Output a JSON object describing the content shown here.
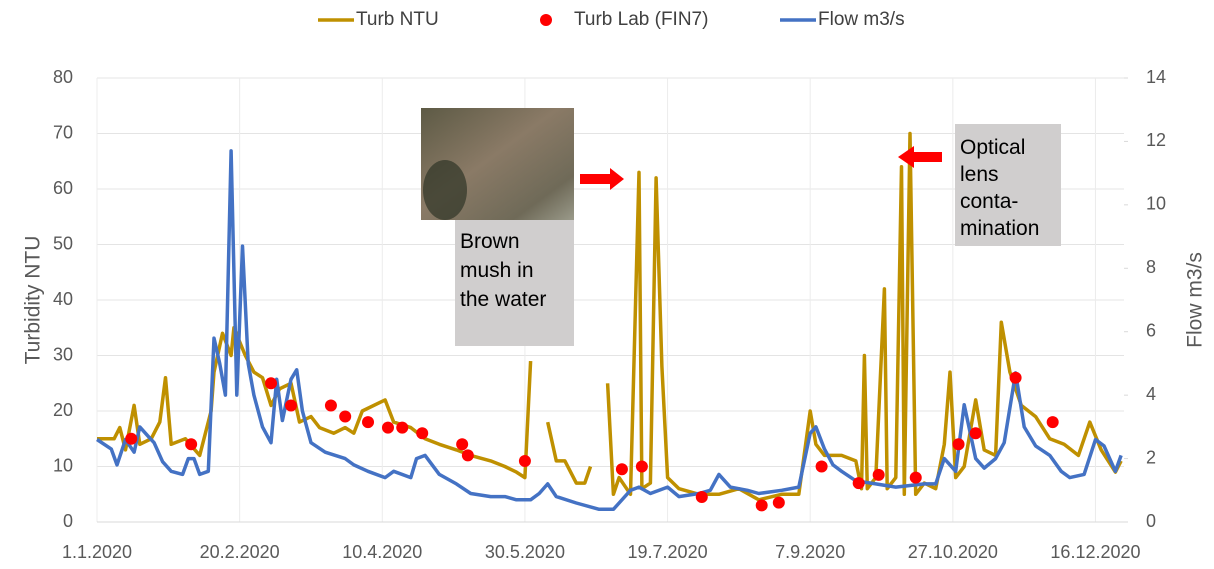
{
  "chart_data": {
    "type": "line",
    "legend": "top",
    "grid": true,
    "y_label": "Turbidity NTU",
    "y2_label": "Flow m3/s",
    "xlim": [
      "2020-01-01",
      "2020-12-26"
    ],
    "xticks": [
      {
        "value": "2020-01-01",
        "label": "1.1.2020"
      },
      {
        "value": "2020-02-20",
        "label": "20.2.2020"
      },
      {
        "value": "2020-04-10",
        "label": "10.4.2020"
      },
      {
        "value": "2020-05-30",
        "label": "30.5.2020"
      },
      {
        "value": "2020-07-19",
        "label": "19.7.2020"
      },
      {
        "value": "2020-09-07",
        "label": "7.9.2020"
      },
      {
        "value": "2020-10-27",
        "label": "27.10.2020"
      },
      {
        "value": "2020-12-16",
        "label": "16.12.2020"
      }
    ],
    "ylim": [
      0,
      80
    ],
    "yticks": [
      0,
      10,
      20,
      30,
      40,
      50,
      60,
      70,
      80
    ],
    "y2lim": [
      0,
      14
    ],
    "y2ticks": [
      0,
      2,
      4,
      6,
      8,
      10,
      12,
      14
    ],
    "series": [
      {
        "name": "Turb NTU",
        "type": "line",
        "color": "#bf9000",
        "x": [
          "2020-01-01",
          "2020-01-07",
          "2020-01-09",
          "2020-01-11",
          "2020-01-14",
          "2020-01-16",
          "2020-01-20",
          "2020-01-23",
          "2020-01-25",
          "2020-01-27",
          "2020-02-01",
          "2020-02-06",
          "2020-02-10",
          "2020-02-11",
          "2020-02-14",
          "2020-02-17",
          "2020-02-18",
          "2020-02-22",
          "2020-02-25",
          "2020-02-28",
          "2020-03-02",
          "2020-03-05",
          "2020-03-09",
          "2020-03-12",
          "2020-03-16",
          "2020-03-19",
          "2020-03-24",
          "2020-03-28",
          "2020-03-31",
          "2020-04-03",
          "2020-04-11",
          "2020-04-14",
          "2020-04-20",
          "2020-04-25",
          "2020-04-30",
          "2020-05-06",
          "2020-05-11",
          "2020-05-18",
          "2020-05-23",
          "2020-05-27",
          "2020-05-30",
          "2020-06-01",
          "2020-06-04",
          "2020-06-07",
          "2020-06-10",
          "2020-06-13",
          "2020-06-17",
          "2020-06-20",
          "2020-06-22",
          "2020-06-25",
          "2020-06-28",
          "2020-06-30",
          "2020-07-02",
          "2020-07-06",
          "2020-07-09",
          "2020-07-10",
          "2020-07-13",
          "2020-07-15",
          "2020-07-17",
          "2020-07-19",
          "2020-07-23",
          "2020-07-30",
          "2020-08-06",
          "2020-08-13",
          "2020-08-20",
          "2020-08-28",
          "2020-09-03",
          "2020-09-07",
          "2020-09-09",
          "2020-09-12",
          "2020-09-18",
          "2020-09-23",
          "2020-09-25",
          "2020-09-26",
          "2020-09-27",
          "2020-09-30",
          "2020-10-03",
          "2020-10-04",
          "2020-10-07",
          "2020-10-09",
          "2020-10-10",
          "2020-10-12",
          "2020-10-14",
          "2020-10-17",
          "2020-10-21",
          "2020-10-24",
          "2020-10-26",
          "2020-10-28",
          "2020-10-31",
          "2020-11-04",
          "2020-11-07",
          "2020-11-11",
          "2020-11-13",
          "2020-11-16",
          "2020-11-20",
          "2020-11-25",
          "2020-11-30",
          "2020-12-05",
          "2020-12-10",
          "2020-12-14",
          "2020-12-18",
          "2020-12-23",
          "2020-12-25"
        ],
        "values": [
          15,
          15,
          17,
          13,
          21,
          14,
          15,
          18,
          26,
          14,
          15,
          12,
          20,
          27,
          34,
          30,
          35,
          30,
          27,
          26,
          21,
          24,
          25,
          18,
          19,
          17,
          16,
          17,
          16,
          20,
          22,
          18,
          17,
          15,
          14,
          13,
          12,
          11,
          10,
          9,
          8,
          29,
          null,
          18,
          11,
          11,
          7,
          7,
          10,
          null,
          25,
          5,
          8,
          5,
          63,
          6,
          7,
          62,
          28,
          8,
          6,
          5,
          5,
          6,
          4,
          5,
          5,
          20,
          14,
          12,
          12,
          11,
          6,
          30,
          6,
          8,
          42,
          6,
          8,
          64,
          5,
          70,
          5,
          7,
          6,
          14,
          27,
          8,
          10,
          22,
          13,
          12,
          36,
          27,
          21,
          19,
          15,
          14,
          12,
          18,
          13,
          9,
          11
        ]
      },
      {
        "name": "Turb Lab (FIN7)",
        "type": "scatter",
        "color": "#ff0000",
        "x": [
          "2020-01-13",
          "2020-02-03",
          "2020-03-02",
          "2020-03-09",
          "2020-03-23",
          "2020-03-28",
          "2020-04-05",
          "2020-04-12",
          "2020-04-17",
          "2020-04-24",
          "2020-05-08",
          "2020-05-10",
          "2020-05-30",
          "2020-07-03",
          "2020-07-10",
          "2020-07-31",
          "2020-08-21",
          "2020-08-27",
          "2020-09-11",
          "2020-09-24",
          "2020-10-01",
          "2020-10-14",
          "2020-10-29",
          "2020-11-04",
          "2020-11-18",
          "2020-12-01"
        ],
        "values": [
          15,
          14,
          25,
          21,
          21,
          19,
          18,
          17,
          17,
          16,
          14,
          12,
          11,
          9.5,
          10,
          4.5,
          3,
          3.5,
          10,
          7,
          8.5,
          8,
          14,
          16,
          26,
          18
        ]
      },
      {
        "name": "Flow m3/s",
        "type": "line",
        "axis": "y2",
        "color": "#4472c4",
        "x": [
          "2020-01-01",
          "2020-01-06",
          "2020-01-08",
          "2020-01-11",
          "2020-01-14",
          "2020-01-16",
          "2020-01-19",
          "2020-01-21",
          "2020-01-24",
          "2020-01-27",
          "2020-01-31",
          "2020-02-02",
          "2020-02-04",
          "2020-02-06",
          "2020-02-09",
          "2020-02-11",
          "2020-02-13",
          "2020-02-15",
          "2020-02-17",
          "2020-02-19",
          "2020-02-21",
          "2020-02-23",
          "2020-02-25",
          "2020-02-28",
          "2020-03-02",
          "2020-03-04",
          "2020-03-06",
          "2020-03-09",
          "2020-03-11",
          "2020-03-13",
          "2020-03-16",
          "2020-03-21",
          "2020-03-28",
          "2020-03-31",
          "2020-04-05",
          "2020-04-11",
          "2020-04-14",
          "2020-04-20",
          "2020-04-22",
          "2020-04-25",
          "2020-04-30",
          "2020-05-06",
          "2020-05-11",
          "2020-05-18",
          "2020-05-23",
          "2020-05-27",
          "2020-05-30",
          "2020-06-01",
          "2020-06-04",
          "2020-06-07",
          "2020-06-10",
          "2020-06-17",
          "2020-06-25",
          "2020-06-30",
          "2020-07-02",
          "2020-07-06",
          "2020-07-09",
          "2020-07-13",
          "2020-07-19",
          "2020-07-23",
          "2020-07-30",
          "2020-08-03",
          "2020-08-06",
          "2020-08-10",
          "2020-08-16",
          "2020-08-20",
          "2020-08-28",
          "2020-09-03",
          "2020-09-07",
          "2020-09-09",
          "2020-09-12",
          "2020-09-15",
          "2020-09-18",
          "2020-09-23",
          "2020-09-30",
          "2020-10-07",
          "2020-10-17",
          "2020-10-21",
          "2020-10-24",
          "2020-10-28",
          "2020-10-31",
          "2020-11-04",
          "2020-11-07",
          "2020-11-11",
          "2020-11-14",
          "2020-11-18",
          "2020-11-21",
          "2020-11-25",
          "2020-11-30",
          "2020-12-04",
          "2020-12-07",
          "2020-12-12",
          "2020-12-16",
          "2020-12-19",
          "2020-12-23",
          "2020-12-25"
        ],
        "values": [
          2.6,
          2.3,
          1.8,
          2.6,
          2.2,
          3.0,
          2.7,
          2.5,
          1.9,
          1.6,
          1.5,
          2.0,
          2.0,
          1.5,
          1.6,
          5.8,
          5.0,
          4.0,
          11.7,
          4.0,
          8.7,
          5.0,
          4.0,
          3.0,
          2.5,
          4.5,
          3.2,
          4.5,
          4.8,
          3.5,
          2.5,
          2.2,
          2.0,
          1.8,
          1.6,
          1.4,
          1.6,
          1.4,
          2.0,
          2.1,
          1.5,
          1.2,
          0.9,
          0.8,
          0.8,
          0.7,
          0.7,
          0.7,
          0.9,
          1.2,
          0.8,
          0.6,
          0.4,
          0.4,
          0.6,
          1.0,
          1.1,
          0.9,
          1.1,
          0.8,
          0.9,
          1.0,
          1.5,
          1.1,
          1.0,
          0.9,
          1.0,
          1.1,
          2.8,
          3.0,
          2.3,
          1.8,
          1.6,
          1.3,
          1.2,
          1.1,
          1.2,
          1.2,
          2.0,
          1.6,
          3.7,
          2.0,
          1.7,
          2.0,
          2.5,
          4.7,
          3.0,
          2.4,
          2.1,
          1.6,
          1.4,
          1.5,
          2.6,
          2.4,
          1.6,
          2.1
        ]
      }
    ],
    "annotations": [
      {
        "text": [
          "Brown",
          "mush in",
          "the water"
        ]
      },
      {
        "text": [
          "Optical",
          "lens",
          "conta-",
          "mination"
        ]
      }
    ]
  }
}
